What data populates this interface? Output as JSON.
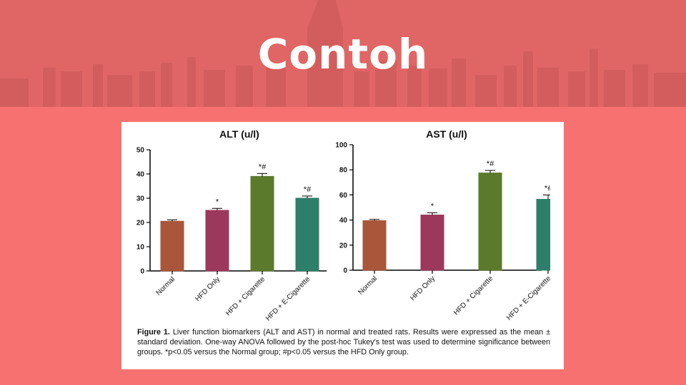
{
  "slide": {
    "title": "Contoh"
  },
  "colors": {
    "background": "#f87171",
    "header": "#e06666",
    "bar_colors": [
      "#a9563a",
      "#9c385c",
      "#5c7a2c",
      "#2e7f6a"
    ]
  },
  "figure": {
    "caption_label": "Figure 1.",
    "caption_text": "Liver function biomarkers (ALT and AST) in normal and treated rats. Results were expressed as the mean ± standard deviation. One-way ANOVA followed by the post-hoc Tukey's test was used to determine significance between groups. *p<0.05 versus the Normal group; #p<0.05 versus the HFD Only group."
  },
  "chart_data": [
    {
      "type": "bar",
      "title": "ALT (u/l)",
      "categories": [
        "Normal",
        "HFD Only",
        "HFD + Cigarette",
        "HFD + E-Cigarette"
      ],
      "values": [
        20.5,
        25,
        39,
        30
      ],
      "errors": [
        0.6,
        0.8,
        1.2,
        0.9
      ],
      "annotations": [
        "",
        "*",
        "*#",
        "*#"
      ],
      "ylim": [
        0,
        50
      ],
      "yticks": [
        0,
        10,
        20,
        30,
        40,
        50
      ],
      "xlabel": "",
      "ylabel": ""
    },
    {
      "type": "bar",
      "title": "AST (u/l)",
      "categories": [
        "Normal",
        "HFD Only",
        "HFD + Cigarette",
        "HFD + E-Cigarette"
      ],
      "values": [
        39.5,
        44,
        77.5,
        56.5
      ],
      "errors": [
        1,
        1.8,
        2,
        3.5
      ],
      "annotations": [
        "",
        "*",
        "*#",
        "*#"
      ],
      "ylim": [
        0,
        100
      ],
      "yticks": [
        0,
        20,
        40,
        60,
        80,
        100
      ],
      "xlabel": "",
      "ylabel": ""
    }
  ]
}
